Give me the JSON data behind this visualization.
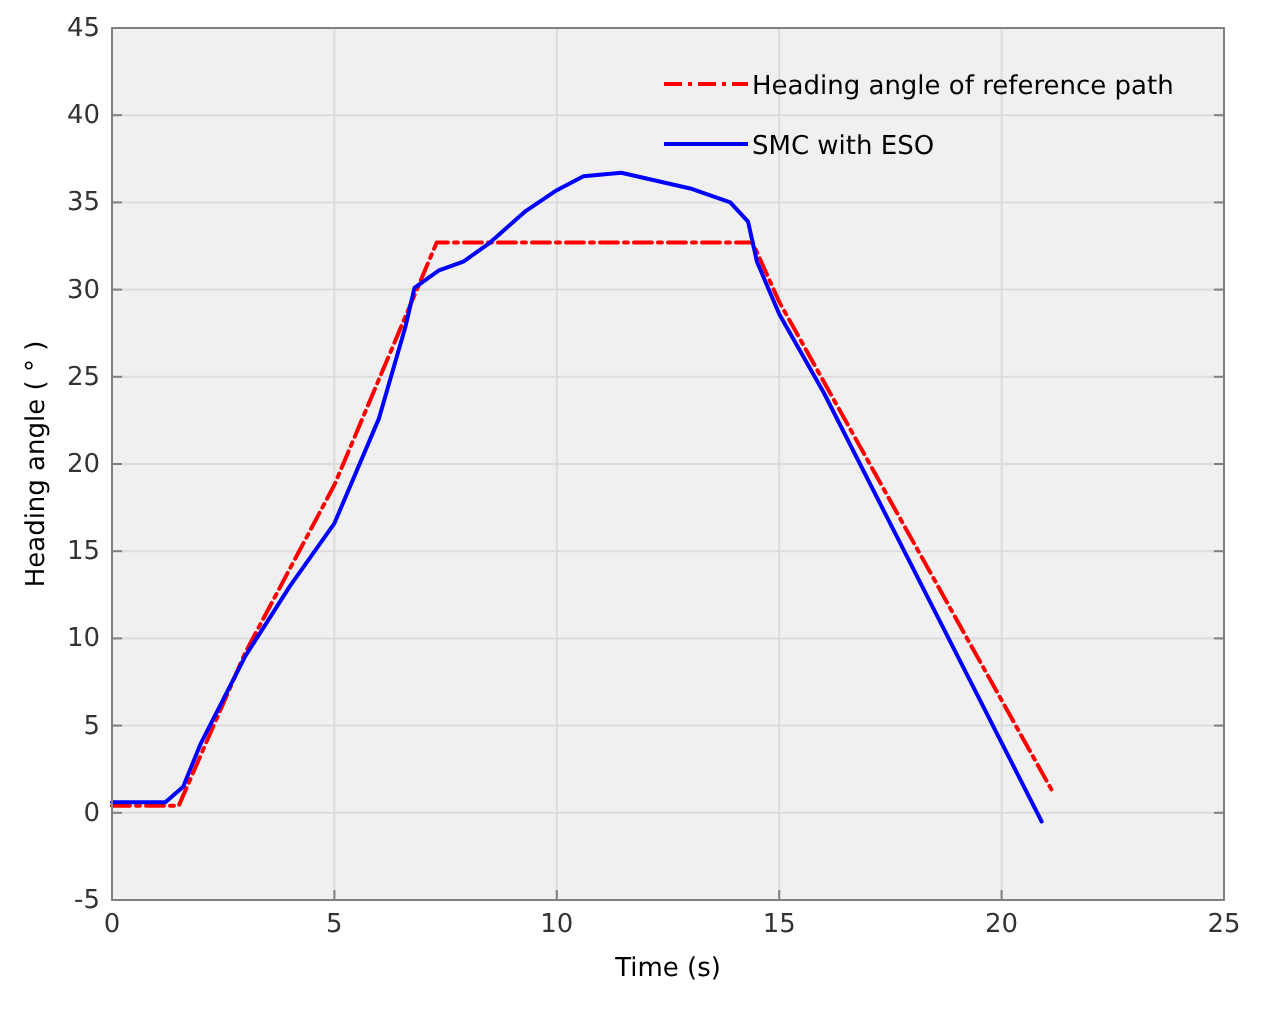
{
  "chart_data": {
    "type": "line",
    "xlabel": "Time (s)",
    "ylabel": "Heading angle ( ° )",
    "xlim": [
      0,
      25
    ],
    "ylim": [
      -5,
      45
    ],
    "xticks": [
      0,
      5,
      10,
      15,
      20,
      25
    ],
    "yticks": [
      -5,
      0,
      5,
      10,
      15,
      20,
      25,
      30,
      35,
      40,
      45
    ],
    "grid": true,
    "legend": "top right",
    "series": [
      {
        "name": "Heading angle of reference path",
        "color": "#ff0000",
        "line_style": "dashdot",
        "x": [
          0,
          1.5,
          3,
          5,
          7.3,
          14.4,
          15,
          21.15
        ],
        "values": [
          0.4,
          0.4,
          9.2,
          18.8,
          32.7,
          32.7,
          29.3,
          1.2
        ]
      },
      {
        "name": "SMC with ESO",
        "color": "#0000ff",
        "line_style": "solid",
        "x": [
          0,
          1.2,
          1.6,
          2,
          3,
          4,
          5,
          6,
          6.6,
          6.8,
          7.35,
          7.9,
          8.5,
          9.3,
          10,
          10.6,
          11.45,
          13,
          13.9,
          14.3,
          14.5,
          15,
          16,
          20.9
        ],
        "values": [
          0.6,
          0.6,
          1.5,
          4,
          9,
          13,
          16.6,
          22.6,
          27.9,
          30.1,
          31.1,
          31.6,
          32.7,
          34.5,
          35.7,
          36.5,
          36.7,
          35.8,
          35,
          33.9,
          31.6,
          28.6,
          24.1,
          -0.5
        ]
      }
    ]
  }
}
